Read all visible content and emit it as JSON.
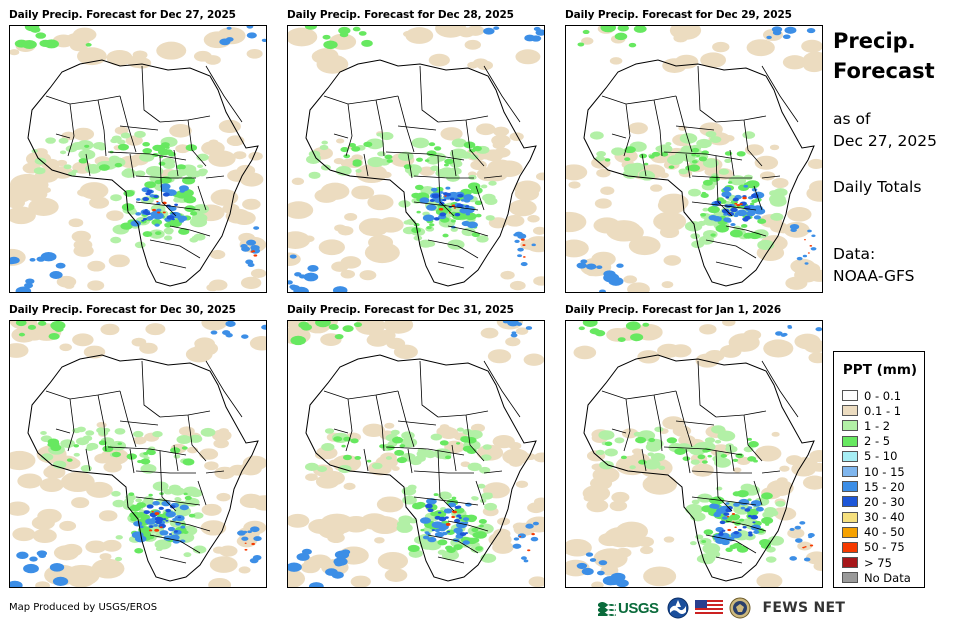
{
  "panels": [
    {
      "title": "Daily Precip. Forecast for Dec 27, 2025"
    },
    {
      "title": "Daily Precip. Forecast for Dec 28, 2025"
    },
    {
      "title": "Daily Precip. Forecast for Dec 29, 2025"
    },
    {
      "title": "Daily Precip. Forecast for Dec 30, 2025"
    },
    {
      "title": "Daily Precip. Forecast for Dec 31, 2025"
    },
    {
      "title": "Daily Precip. Forecast for Jan 1, 2026"
    }
  ],
  "sidebar": {
    "title_line1": "Precip.",
    "title_line2": "Forecast",
    "as_of_label": "as of",
    "as_of_date": "Dec 27, 2025",
    "totals": "Daily Totals",
    "data_label": "Data:",
    "data_source": "NOAA-GFS"
  },
  "legend": {
    "title": "PPT (mm)",
    "items": [
      {
        "label": "0 - 0.1",
        "color": "#ffffff"
      },
      {
        "label": "0.1 - 1",
        "color": "#ecdcc0"
      },
      {
        "label": "1 - 2",
        "color": "#b2f0a6"
      },
      {
        "label": "2 - 5",
        "color": "#67e860"
      },
      {
        "label": "5 - 10",
        "color": "#a6eef4"
      },
      {
        "label": "10 - 15",
        "color": "#7fb6ee"
      },
      {
        "label": "15 - 20",
        "color": "#3c8ee6"
      },
      {
        "label": "20 - 30",
        "color": "#1c56d8"
      },
      {
        "label": "30 - 40",
        "color": "#f6e07e"
      },
      {
        "label": "40 - 50",
        "color": "#f5a100"
      },
      {
        "label": "50 - 75",
        "color": "#f53a00"
      },
      {
        "label": "> 75",
        "color": "#a6161a"
      },
      {
        "label": "No Data",
        "color": "#9a9a9a"
      }
    ]
  },
  "footer": {
    "credit": "Map Produced by USGS/EROS",
    "logos": [
      "usgs-logo",
      "noaa-logo",
      "us-flag-logo",
      "state-dept-seal",
      "fews-net-logo"
    ],
    "usgs_text": "USGS",
    "fews_text": "FEWS NET"
  }
}
